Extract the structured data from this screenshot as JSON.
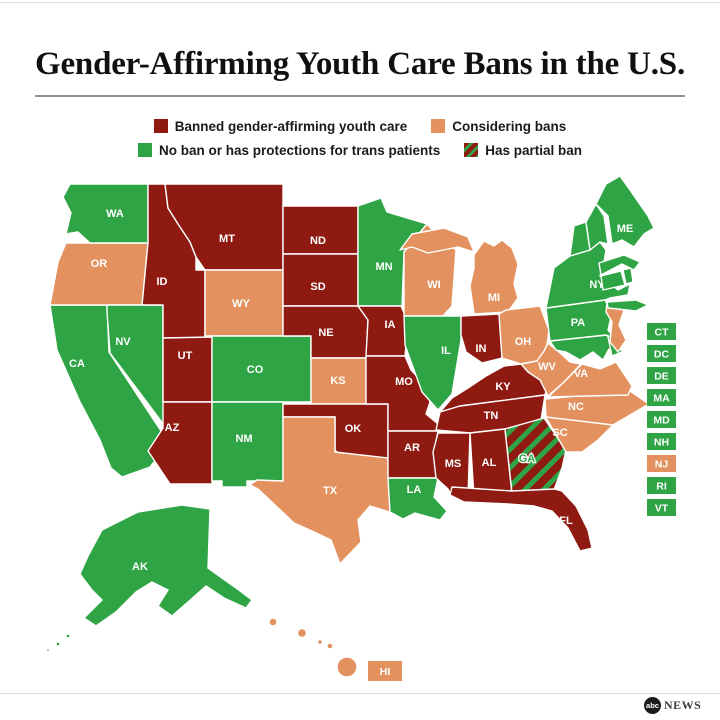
{
  "title": "Gender-Affirming Youth Care Bans in the U.S.",
  "colors": {
    "banned": "#8E1A12",
    "considering": "#E3925F",
    "none": "#2EA444",
    "partial_stripe": "#2EA444",
    "state_border": "#FFFFFF"
  },
  "legend": [
    {
      "key": "banned",
      "label": "Banned gender-affirming youth care"
    },
    {
      "key": "considering",
      "label": "Considering bans"
    },
    {
      "key": "none",
      "label": "No ban or has protections for trans patients"
    },
    {
      "key": "partial",
      "label": "Has partial ban"
    }
  ],
  "map": {
    "states": [
      {
        "id": "CA",
        "label": "CA",
        "category": "none"
      },
      {
        "id": "OR",
        "label": "OR",
        "category": "considering"
      },
      {
        "id": "WA",
        "label": "WA",
        "category": "none"
      },
      {
        "id": "NV",
        "label": "NV",
        "category": "none"
      },
      {
        "id": "ID",
        "label": "ID",
        "category": "banned"
      },
      {
        "id": "MT",
        "label": "MT",
        "category": "banned"
      },
      {
        "id": "WY",
        "label": "WY",
        "category": "considering"
      },
      {
        "id": "UT",
        "label": "UT",
        "category": "banned"
      },
      {
        "id": "CO",
        "label": "CO",
        "category": "none"
      },
      {
        "id": "AZ",
        "label": "AZ",
        "category": "banned"
      },
      {
        "id": "NM",
        "label": "NM",
        "category": "none"
      },
      {
        "id": "ND",
        "label": "ND",
        "category": "banned"
      },
      {
        "id": "SD",
        "label": "SD",
        "category": "banned"
      },
      {
        "id": "NE",
        "label": "NE",
        "category": "banned"
      },
      {
        "id": "KS",
        "label": "KS",
        "category": "considering"
      },
      {
        "id": "OK",
        "label": "OK",
        "category": "banned"
      },
      {
        "id": "TX",
        "label": "TX",
        "category": "considering"
      },
      {
        "id": "MN",
        "label": "MN",
        "category": "none"
      },
      {
        "id": "IA",
        "label": "IA",
        "category": "banned"
      },
      {
        "id": "MO",
        "label": "MO",
        "category": "banned"
      },
      {
        "id": "AR",
        "label": "AR",
        "category": "banned"
      },
      {
        "id": "LA",
        "label": "LA",
        "category": "none"
      },
      {
        "id": "WI",
        "label": "WI",
        "category": "considering"
      },
      {
        "id": "MI",
        "label": "MI",
        "category": "considering"
      },
      {
        "id": "IL",
        "label": "IL",
        "category": "none"
      },
      {
        "id": "IN",
        "label": "IN",
        "category": "banned"
      },
      {
        "id": "OH",
        "label": "OH",
        "category": "considering"
      },
      {
        "id": "KY",
        "label": "KY",
        "category": "banned"
      },
      {
        "id": "TN",
        "label": "TN",
        "category": "banned"
      },
      {
        "id": "MS",
        "label": "MS",
        "category": "banned"
      },
      {
        "id": "AL",
        "label": "AL",
        "category": "banned"
      },
      {
        "id": "GA",
        "label": "GA",
        "category": "partial"
      },
      {
        "id": "FL",
        "label": "FL",
        "category": "banned"
      },
      {
        "id": "SC",
        "label": "SC",
        "category": "considering"
      },
      {
        "id": "NC",
        "label": "NC",
        "category": "considering"
      },
      {
        "id": "VA",
        "label": "VA",
        "category": "considering"
      },
      {
        "id": "WV",
        "label": "WV",
        "category": "considering"
      },
      {
        "id": "MD",
        "label": "",
        "category": "none"
      },
      {
        "id": "DE",
        "label": "",
        "category": "none"
      },
      {
        "id": "PA",
        "label": "PA",
        "category": "none"
      },
      {
        "id": "NJ",
        "label": "",
        "category": "considering"
      },
      {
        "id": "NY",
        "label": "NY",
        "category": "none"
      },
      {
        "id": "CT",
        "label": "",
        "category": "none"
      },
      {
        "id": "RI",
        "label": "",
        "category": "none"
      },
      {
        "id": "MA",
        "label": "",
        "category": "none"
      },
      {
        "id": "VT",
        "label": "",
        "category": "none"
      },
      {
        "id": "NH",
        "label": "",
        "category": "none"
      },
      {
        "id": "ME",
        "label": "ME",
        "category": "none"
      },
      {
        "id": "AK",
        "label": "AK",
        "category": "none"
      },
      {
        "id": "HI",
        "label": "HI",
        "category": "considering"
      }
    ],
    "mini_states": [
      {
        "label": "CT",
        "category": "none"
      },
      {
        "label": "DC",
        "category": "none"
      },
      {
        "label": "DE",
        "category": "none"
      },
      {
        "label": "MA",
        "category": "none"
      },
      {
        "label": "MD",
        "category": "none"
      },
      {
        "label": "NH",
        "category": "none"
      },
      {
        "label": "NJ",
        "category": "considering"
      },
      {
        "label": "RI",
        "category": "none"
      },
      {
        "label": "VT",
        "category": "none"
      }
    ]
  },
  "logo": {
    "abc": "abc",
    "news": "NEWS"
  }
}
